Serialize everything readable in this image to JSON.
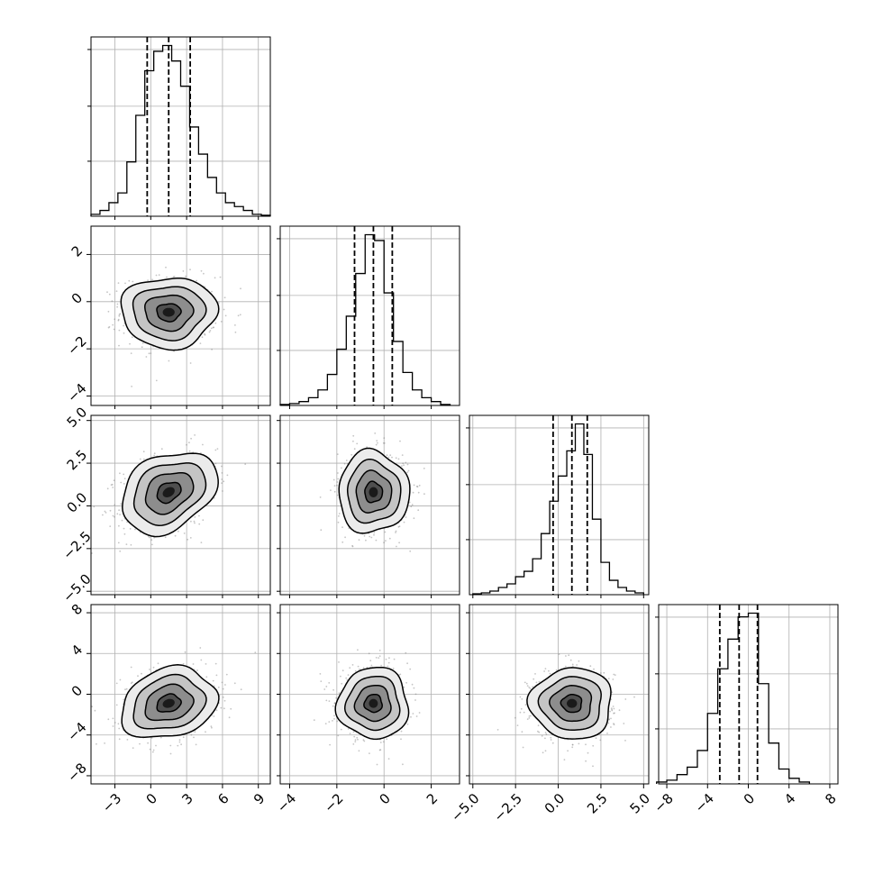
{
  "chart_data": {
    "type": "corner",
    "grid": true,
    "colors": {
      "ink": "#000000",
      "grid": "#b0b0b0",
      "scatter": "#7f7f7f"
    },
    "parameters": [
      {
        "range": [
          -5,
          10
        ],
        "ticks": [
          -3,
          0,
          3,
          6,
          9
        ],
        "tick_labels": [
          "−3",
          "0",
          "3",
          "6",
          "9"
        ]
      },
      {
        "range": [
          -4.4,
          3.2
        ],
        "ticks": [
          -4,
          -2,
          0,
          2
        ],
        "tick_labels": [
          "−4",
          "−2",
          "0",
          "2"
        ]
      },
      {
        "range": [
          -5.2,
          5.3
        ],
        "ticks": [
          -5,
          -2.5,
          0,
          2.5,
          5
        ],
        "tick_labels": [
          "−5.0",
          "−2.5",
          "0.0",
          "2.5",
          "5.0"
        ]
      },
      {
        "range": [
          -8.8,
          8.8
        ],
        "ticks": [
          -8,
          -4,
          0,
          4,
          8
        ],
        "tick_labels": [
          "−8",
          "−4",
          "0",
          "4",
          "8"
        ]
      }
    ],
    "diagonal": [
      {
        "bins": [
          -4.625,
          -3.875,
          -3.125,
          -2.375,
          -1.625,
          -0.875,
          -0.125,
          0.625,
          1.375,
          2.125,
          2.875,
          3.625,
          4.375,
          5.125,
          5.875,
          6.625,
          7.375,
          8.125,
          8.875,
          9.625
        ],
        "counts": [
          1,
          3,
          7,
          12,
          28,
          52,
          75,
          85,
          88,
          80,
          67,
          46,
          32,
          20,
          12,
          7,
          5,
          3,
          1,
          0.5
        ],
        "quantiles": [
          -0.3,
          1.5,
          3.3
        ]
      },
      {
        "bins": [
          -4.2,
          -3.8,
          -3.4,
          -3.0,
          -2.6,
          -2.2,
          -1.8,
          -1.4,
          -1.0,
          -0.6,
          -0.2,
          0.2,
          0.6,
          1.0,
          1.4,
          1.8,
          2.2,
          2.6
        ],
        "counts": [
          0.5,
          1,
          2,
          4,
          8,
          16,
          29,
          46,
          68,
          88,
          85,
          58,
          33,
          17,
          8,
          4,
          2,
          0.5
        ],
        "quantiles": [
          -1.25,
          -0.45,
          0.35
        ]
      },
      {
        "bins": [
          -4.75,
          -4.25,
          -3.75,
          -3.25,
          -2.75,
          -2.25,
          -1.75,
          -1.25,
          -0.75,
          -0.25,
          0.25,
          0.75,
          1.25,
          1.75,
          2.25,
          2.75,
          3.25,
          3.75,
          4.25,
          4.75
        ],
        "counts": [
          0.5,
          1,
          2,
          4,
          6,
          10,
          13,
          20,
          34,
          52,
          66,
          80,
          95,
          78,
          42,
          18,
          8,
          4,
          2,
          1
        ],
        "quantiles": [
          -0.3,
          0.8,
          1.7
        ]
      },
      {
        "bins": [
          -8.5,
          -7.5,
          -6.5,
          -5.5,
          -4.5,
          -3.5,
          -2.5,
          -1.5,
          -0.5,
          0.5,
          1.5,
          2.5,
          3.5,
          4.5,
          5.5
        ],
        "counts": [
          1,
          2,
          5,
          9,
          18,
          38,
          62,
          78,
          90,
          92,
          54,
          22,
          8,
          3,
          1
        ],
        "quantiles": [
          -2.8,
          -0.9,
          0.9
        ]
      }
    ],
    "pairs": [
      {
        "row": 1,
        "col": 0,
        "mean": [
          1.5,
          -0.45
        ],
        "sd": [
          2.0,
          0.75
        ],
        "rho": 0.0
      },
      {
        "row": 2,
        "col": 0,
        "mean": [
          1.5,
          0.8
        ],
        "sd": [
          2.0,
          1.2
        ],
        "rho": 0.3
      },
      {
        "row": 2,
        "col": 1,
        "mean": [
          -0.45,
          0.8
        ],
        "sd": [
          0.75,
          1.2
        ],
        "rho": 0.0
      },
      {
        "row": 3,
        "col": 0,
        "mean": [
          1.5,
          -0.9
        ],
        "sd": [
          2.0,
          1.75
        ],
        "rho": 0.2
      },
      {
        "row": 3,
        "col": 1,
        "mean": [
          -0.45,
          -0.9
        ],
        "sd": [
          0.75,
          1.75
        ],
        "rho": 0.0
      },
      {
        "row": 3,
        "col": 2,
        "mean": [
          0.8,
          -0.9
        ],
        "sd": [
          1.2,
          1.75
        ],
        "rho": 0.0
      }
    ],
    "contour_levels_sigma": [
      0.5,
      1.0,
      1.5,
      2.0
    ]
  }
}
